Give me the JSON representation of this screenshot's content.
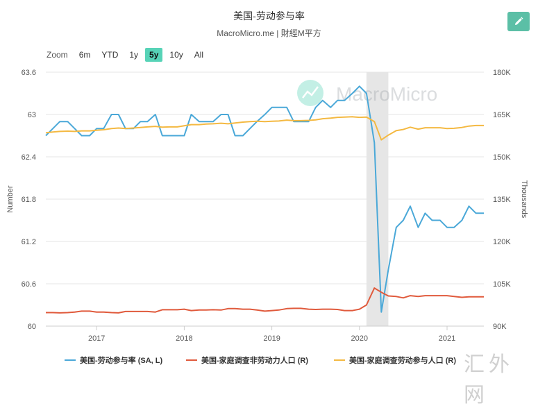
{
  "header": {
    "title": "美国-劳动参与率",
    "subtitle": "MacroMicro.me | 財經M平方"
  },
  "toolbar": {
    "zoom_label": "Zoom",
    "ranges": [
      "6m",
      "YTD",
      "1y",
      "5y",
      "10y",
      "All"
    ],
    "active_range": "5y",
    "edit_icon": "pencil-icon"
  },
  "watermark": {
    "logo_text": "MacroMicro",
    "corner_text": "汇外网"
  },
  "colors": {
    "participation_rate": "#4aa8d8",
    "not_in_labor_force": "#e05a3c",
    "labor_force": "#f4b942",
    "accent": "#57d3b7",
    "recession_band": "#e6e6e6"
  },
  "chart_data": {
    "type": "line",
    "x_tick_labels": [
      "2017",
      "2018",
      "2019",
      "2020",
      "2021"
    ],
    "x_ticks": [
      2017,
      2018,
      2019,
      2020,
      2021
    ],
    "xlim": [
      2016.42,
      2021.42
    ],
    "ylabel_left": "Number",
    "ylabel_right": "Thousands",
    "ylim_left": [
      60,
      63.6
    ],
    "yticks_left": [
      "63.6",
      "63",
      "62.4",
      "61.8",
      "61.2",
      "60.6",
      "60"
    ],
    "ylim_right": [
      90000,
      180000
    ],
    "yticks_right": [
      "180K",
      "165K",
      "150K",
      "135K",
      "120K",
      "105K",
      "90K"
    ],
    "shaded_region": [
      2020.08,
      2020.33
    ],
    "legend_position": "bottom",
    "grid": "horizontal",
    "series": [
      {
        "name": "美国-劳动参与率 (SA, L)",
        "axis": "left",
        "x": [
          2016.42,
          2016.5,
          2016.58,
          2016.67,
          2016.75,
          2016.83,
          2016.92,
          2017.0,
          2017.08,
          2017.17,
          2017.25,
          2017.33,
          2017.42,
          2017.5,
          2017.58,
          2017.67,
          2017.75,
          2017.83,
          2017.92,
          2018.0,
          2018.08,
          2018.17,
          2018.25,
          2018.33,
          2018.42,
          2018.5,
          2018.58,
          2018.67,
          2018.75,
          2018.83,
          2018.92,
          2019.0,
          2019.08,
          2019.17,
          2019.25,
          2019.33,
          2019.42,
          2019.5,
          2019.58,
          2019.67,
          2019.75,
          2019.83,
          2019.92,
          2020.0,
          2020.08,
          2020.17,
          2020.25,
          2020.33,
          2020.42,
          2020.5,
          2020.58,
          2020.67,
          2020.75,
          2020.83,
          2020.92,
          2021.0,
          2021.08,
          2021.17,
          2021.25,
          2021.33,
          2021.42
        ],
        "values": [
          62.7,
          62.8,
          62.9,
          62.9,
          62.8,
          62.7,
          62.7,
          62.8,
          62.8,
          63.0,
          63.0,
          62.8,
          62.8,
          62.9,
          62.9,
          63.0,
          62.7,
          62.7,
          62.7,
          62.7,
          63.0,
          62.9,
          62.9,
          62.9,
          63.0,
          63.0,
          62.7,
          62.7,
          62.8,
          62.9,
          63.0,
          63.1,
          63.1,
          63.1,
          62.9,
          62.9,
          62.9,
          63.1,
          63.2,
          63.1,
          63.2,
          63.2,
          63.3,
          63.4,
          63.3,
          62.6,
          60.2,
          60.8,
          61.4,
          61.5,
          61.7,
          61.4,
          61.6,
          61.5,
          61.5,
          61.4,
          61.4,
          61.5,
          61.7,
          61.6,
          61.6
        ]
      },
      {
        "name": "美国-家庭调查非劳动力人口 (R)",
        "axis": "right",
        "x": [
          2016.42,
          2016.5,
          2016.58,
          2016.67,
          2016.75,
          2016.83,
          2016.92,
          2017.0,
          2017.08,
          2017.17,
          2017.25,
          2017.33,
          2017.42,
          2017.5,
          2017.58,
          2017.67,
          2017.75,
          2017.83,
          2017.92,
          2018.0,
          2018.08,
          2018.17,
          2018.25,
          2018.33,
          2018.42,
          2018.5,
          2018.58,
          2018.67,
          2018.75,
          2018.83,
          2018.92,
          2019.0,
          2019.08,
          2019.17,
          2019.25,
          2019.33,
          2019.42,
          2019.5,
          2019.58,
          2019.67,
          2019.75,
          2019.83,
          2019.92,
          2020.0,
          2020.08,
          2020.17,
          2020.25,
          2020.33,
          2020.42,
          2020.5,
          2020.58,
          2020.67,
          2020.75,
          2020.83,
          2020.92,
          2021.0,
          2021.08,
          2021.17,
          2021.25,
          2021.33,
          2021.42
        ],
        "values": [
          94800,
          94800,
          94700,
          94800,
          95000,
          95300,
          95300,
          95000,
          95000,
          94800,
          94700,
          95200,
          95200,
          95200,
          95200,
          95000,
          95800,
          95800,
          95800,
          96000,
          95500,
          95700,
          95700,
          95800,
          95700,
          96200,
          96200,
          96000,
          96000,
          95700,
          95300,
          95500,
          95700,
          96200,
          96300,
          96300,
          96000,
          95900,
          96000,
          96000,
          95900,
          95500,
          95500,
          96000,
          97500,
          103500,
          102000,
          100700,
          100500,
          100000,
          100800,
          100500,
          100800,
          100800,
          100800,
          100800,
          100500,
          100200,
          100400,
          100400,
          100400
        ]
      },
      {
        "name": "美国-家庭调查劳动参与人口 (R)",
        "axis": "right",
        "x": [
          2016.42,
          2016.5,
          2016.58,
          2016.67,
          2016.75,
          2016.83,
          2016.92,
          2017.0,
          2017.08,
          2017.17,
          2017.25,
          2017.33,
          2017.42,
          2017.5,
          2017.58,
          2017.67,
          2017.75,
          2017.83,
          2017.92,
          2018.0,
          2018.08,
          2018.17,
          2018.25,
          2018.33,
          2018.42,
          2018.5,
          2018.58,
          2018.67,
          2018.75,
          2018.83,
          2018.92,
          2019.0,
          2019.08,
          2019.17,
          2019.25,
          2019.33,
          2019.42,
          2019.5,
          2019.58,
          2019.67,
          2019.75,
          2019.83,
          2019.92,
          2020.0,
          2020.08,
          2020.17,
          2020.25,
          2020.33,
          2020.42,
          2020.5,
          2020.58,
          2020.67,
          2020.75,
          2020.83,
          2020.92,
          2021.0,
          2021.08,
          2021.17,
          2021.25,
          2021.33,
          2021.42
        ],
        "values": [
          158500,
          158800,
          159000,
          159100,
          159000,
          159200,
          159200,
          159400,
          159600,
          160000,
          160200,
          160000,
          160200,
          160400,
          160600,
          160800,
          160500,
          160600,
          160600,
          161000,
          161400,
          161400,
          161600,
          161700,
          161900,
          161700,
          162000,
          162300,
          162500,
          162600,
          162500,
          162600,
          162700,
          163000,
          162800,
          162800,
          162900,
          163100,
          163500,
          163700,
          164000,
          164100,
          164200,
          164000,
          164100,
          162500,
          156000,
          157700,
          159300,
          159700,
          160500,
          159800,
          160300,
          160300,
          160300,
          160000,
          160100,
          160400,
          160900,
          161100,
          161100
        ]
      }
    ]
  }
}
